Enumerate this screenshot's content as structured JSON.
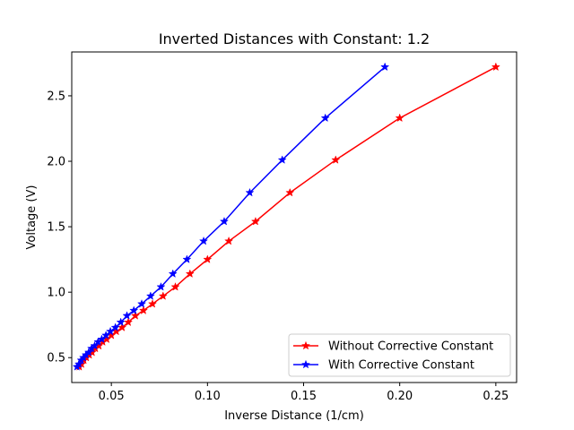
{
  "chart_data": {
    "type": "line",
    "title": "Inverted Distances with Constant: 1.2",
    "xlabel": "Inverse Distance (1/cm)",
    "ylabel": "Voltage (V)",
    "xlim": [
      0.0294,
      0.2608
    ],
    "ylim": [
      0.31,
      2.835
    ],
    "xticks": [
      0.05,
      0.1,
      0.15,
      0.2,
      0.25
    ],
    "xtick_labels": [
      "0.05",
      "0.10",
      "0.15",
      "0.20",
      "0.25"
    ],
    "yticks": [
      0.5,
      1.0,
      1.5,
      2.0,
      2.5
    ],
    "ytick_labels": [
      "0.5",
      "1.0",
      "1.5",
      "2.0",
      "2.5"
    ],
    "grid": false,
    "legend_position": "bottom-right",
    "series": [
      {
        "name": "Without Corrective Constant",
        "color": "#ff0000",
        "marker": "star",
        "x": [
          0.25,
          0.2,
          0.1667,
          0.1429,
          0.125,
          0.1111,
          0.1,
          0.0909,
          0.0833,
          0.0769,
          0.0714,
          0.0667,
          0.0625,
          0.0588,
          0.0556,
          0.0526,
          0.05,
          0.0476,
          0.0455,
          0.0435,
          0.0417,
          0.04,
          0.0385,
          0.037,
          0.0357,
          0.0345,
          0.0333
        ],
        "y": [
          2.72,
          2.33,
          2.01,
          1.76,
          1.54,
          1.39,
          1.25,
          1.14,
          1.04,
          0.97,
          0.91,
          0.86,
          0.82,
          0.77,
          0.73,
          0.7,
          0.67,
          0.64,
          0.62,
          0.59,
          0.57,
          0.54,
          0.52,
          0.5,
          0.48,
          0.45,
          0.43
        ]
      },
      {
        "name": "With Corrective Constant",
        "color": "#0000ff",
        "marker": "star",
        "x": [
          0.1923,
          0.1613,
          0.1389,
          0.122,
          0.1087,
          0.098,
          0.0893,
          0.082,
          0.0758,
          0.0704,
          0.0658,
          0.0617,
          0.0581,
          0.0549,
          0.0521,
          0.0495,
          0.0472,
          0.045,
          0.0431,
          0.0413,
          0.0397,
          0.0382,
          0.0368,
          0.0355,
          0.0343,
          0.0331,
          0.0321
        ],
        "y": [
          2.72,
          2.33,
          2.01,
          1.76,
          1.54,
          1.39,
          1.25,
          1.14,
          1.04,
          0.97,
          0.91,
          0.86,
          0.82,
          0.77,
          0.73,
          0.7,
          0.67,
          0.64,
          0.62,
          0.59,
          0.57,
          0.54,
          0.52,
          0.5,
          0.48,
          0.45,
          0.43
        ]
      }
    ]
  }
}
